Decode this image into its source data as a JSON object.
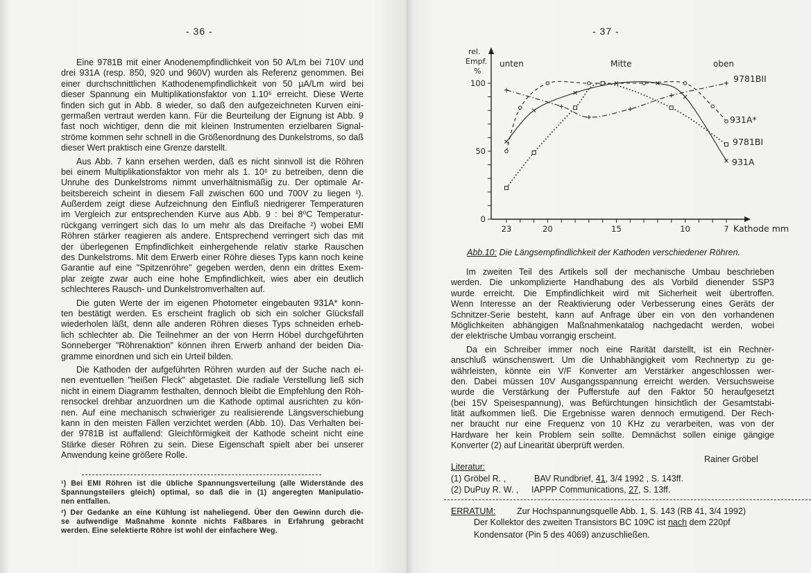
{
  "left_page": {
    "page_number": "- 36 -",
    "paragraphs": [
      [
        "Eine 9781B mit einer Anodenempfindlichkeit von 50 A/Lm bei 710V und",
        "drei 931A (resp. 850, 920 und 960V) wurden als Referenz genommen. Bei",
        "einer durchschnittlichen Kathodenempfindlichkeit von 50 µA/Lm wird bei",
        "dieser Spannung ein Multiplikationsfaktor von 1.10⁶ erreicht. Diese Werte",
        "finden sich gut in Abb. 8 wieder, so daß den aufgezeichneten Kurven eini-",
        "germaßen vertraut werden kann. Für die Beurteilung der Eignung ist Abb. 9",
        "fast noch wichtiger, denn die mit kleinen Instrumenten erzielbaren Signal-",
        "ströme kommen sehr schnell in die Größenordnung des Dunkelstroms, so daß",
        "dieser Wert praktisch eine Grenze darstellt."
      ],
      [
        "Aus Abb. 7 kann ersehen werden, daß es nicht sinnvoll ist die Röhren",
        "bei einem Multiplikationsfaktor von mehr als 1. 10⁶ zu betreiben, denn die",
        "Unruhe des Dunkelstroms nimmt unverhältnismäßig zu. Der optimale Ar-",
        "beitsbereich scheint in diesem Fall zwischen 600 und 700V zu liegen ¹).",
        "Außerdem zeigt diese Aufzeichnung den Einfluß niedrigerer Temperaturen",
        "im Vergleich zur entsprechenden Kurve aus Abb. 9 : bei 8⁰C Temperatur-",
        "rückgang verringert sich das Io um mehr als das Dreifache ²) wobei EMI",
        "Röhren stärker reagieren als andere. Entsprechend verringert sich das mit",
        "der überlegenen Empfindlichkeit einhergehende relativ starke Rauschen",
        "des Dunkelstroms. Mit dem Erwerb einer Röhre dieses Typs kann noch keine",
        "Garantie auf eine \"Spitzenröhre\" gegeben werden, denn ein drittes Exem-",
        "plar zeigte zwar auch eine hohe Empfindlichkeit, wies aber ein deutlich",
        "schlechteres Rausch- und Dunkelstromverhalten auf."
      ],
      [
        "Die guten Werte der im eigenen Photometer eingebauten 931A* konn-",
        "ten bestätigt werden. Es erscheint fraglich ob sich ein solcher Glücksfall",
        "wiederholen läßt, denn alle anderen Röhren dieses Typs schneiden erheb-",
        "lich schlechter ab. Die Teilnehmer an der von Herrn Höbel durchgeführten",
        "Sonneberger \"Röhrenaktion\" können ihren Erwerb anhand der beiden Dia-",
        "gramme einordnen und sich ein Urteil bilden."
      ],
      [
        "Die Kathoden der aufgeführten Röhren wurden auf der Suche nach ei-",
        "nen eventuellen \"heißen Fleck\" abgetastet. Die radiale Verstellung ließ sich",
        "nicht in einem Diagramm festhalten, dennoch bleibt die Empfehlung den Röh-",
        "rensockel drehbar anzuordnen um die Kathode optimal ausrichten zu kön-",
        "nen. Auf eine mechanisch schwieriger zu realisierende Längsverschiebung",
        "kann in den meisten Fällen verzichtet werden (Abb. 10). Das Verhalten bei-",
        "der 9781B ist auffallend: Gleichförmigkeit der Kathode scheint nicht eine",
        "Stärke dieser Röhren zu sein. Diese Eigenschaft spielt aber bei unserer",
        "Anwendung keine größere Rolle."
      ]
    ],
    "footnotes": [
      [
        "¹) Bei EMI Röhren ist die übliche Spannungsverteilung (alle Widerstände des",
        "Spannungsteilers gleich) optimal, so daß die in (1) angeregten Manipulatio-",
        "nen entfallen."
      ],
      [
        "²) Der Gedanke an eine Kühlung ist naheliegend. Über den Gewinn durch die-",
        "se aufwendige Maßnahme konnte nichts Faßbares in Erfahrung gebracht",
        "werden. Eine selektierte Röhre ist wohl der einfachere Weg."
      ]
    ]
  },
  "right_page": {
    "page_number": "- 37 -",
    "figure_caption_label": "Abb.10:",
    "figure_caption": "Die Längsempfindlichkeit der Kathoden verschiedener Röhren.",
    "paragraphs": [
      [
        "Im zweiten Teil des Artikels soll der mechanische Umbau beschrieben",
        "werden. Die unkomplizierte Handhabung des als Vorbild dienender SSP3",
        "wurde erreicht. Die Empfindlichkeit wird mit Sicherheit weit übertroffen.",
        "Wenn Interesse an der Reaktivierung oder Verbesserung eines Geräts der",
        "Schnitzer-Serie besteht, kann auf Anfrage über ein von den vorhandenen",
        "Möglichkeiten abhängigen Maßnahmenkatalog nachgedacht werden, wobei",
        "der elektrische Umbau vorrangig erscheint."
      ],
      [
        "Da ein Schreiber immer noch eine Rarität darstellt, ist ein Rechner-",
        "anschluß wünschenswert. Um die Unhabhängigkeit vom Rechnertyp zu ge-",
        "währleisten, könnte ein V/F Konverter am Verstärker angeschlossen wer-",
        "den. Dabei müssen 10V Ausgangsspannung erreicht werden. Versuchsweise",
        "wurde die Verstärkung der Pufferstufe auf den Faktor 50 heraufgesetzt",
        "(bei 15V Speisespannung), was Befürchtungen hinsichtlich der Gesamtstabi-",
        "lität aufkommen ließ. Die Ergebnisse waren dennoch ermutigend. Der Rech-",
        "ner braucht nur eine Frequenz von 10 KHz zu verarbeiten, was von der",
        "Hardware her kein Problem sein sollte. Demnächst sollen einige gängige",
        "Konverter (2) auf Linearität überprüft werden."
      ]
    ],
    "author": "Rainer Gröbel",
    "literature_heading": "Literatur:",
    "references": [
      {
        "num": "(1) Gröbel R. ,",
        "pre": "BAV Rundbrief, ",
        "vol": "41",
        "post": ", 3/4  1992 , S. 143ff."
      },
      {
        "num": "(2) DuPuy R. W. ,",
        "pre": "IAPPP Communications, ",
        "vol": "27",
        "post": ",  S. 13ff."
      }
    ],
    "erratum": {
      "label": "ERRATUM:",
      "line1": "Zur Hochspannungsquelle Abb. 1,  S. 143  (RB 41, 3/4 1992)",
      "line2_pre": "Der Kollektor des zweiten Transistors BC 109C ist ",
      "line2_u": "nach",
      "line2_post": " dem 220pf",
      "line3": "Kondensator (Pin 5 des 4069) anzuschließen."
    }
  },
  "chart_data": {
    "type": "line",
    "title": "",
    "xlabel": "Kathode mm",
    "ylabel": "rel. Empf. %",
    "xlim": [
      23,
      7
    ],
    "ylim": [
      0,
      100
    ],
    "x_ticks": [
      "23",
      "20",
      "15",
      "10",
      "7"
    ],
    "y_ticks": [
      "0",
      "50",
      "100"
    ],
    "region_labels": [
      "unten",
      "Mitte",
      "oben"
    ],
    "grid": false,
    "series": [
      {
        "name": "931A*",
        "style": "dashed-circle",
        "x": [
          23,
          22,
          20,
          17,
          13,
          10,
          8,
          7
        ],
        "y": [
          50,
          82,
          100,
          100,
          100,
          100,
          83,
          72
        ]
      },
      {
        "name": "931A",
        "style": "solid-cross",
        "x": [
          23,
          21,
          18,
          15,
          12,
          10,
          7
        ],
        "y": [
          57,
          80,
          93,
          100,
          100,
          90,
          43
        ]
      },
      {
        "name": "9781BI",
        "style": "dotted-square",
        "x": [
          23,
          21,
          18,
          16,
          11,
          7
        ],
        "y": [
          23,
          49,
          82,
          100,
          82,
          55
        ]
      },
      {
        "name": "9781BII",
        "style": "dashdot-plus",
        "x": [
          23,
          19,
          17,
          14,
          11,
          7
        ],
        "y": [
          95,
          83,
          75,
          81,
          91,
          100
        ]
      }
    ]
  }
}
